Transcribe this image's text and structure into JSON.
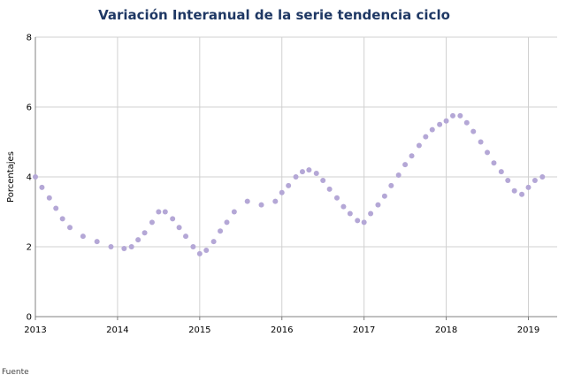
{
  "chart_data": {
    "type": "scatter",
    "title": "Variación Interanual de la serie tendencia ciclo",
    "xlabel": "",
    "ylabel": "Porcentajes",
    "xlim": [
      2013,
      2019.35
    ],
    "ylim": [
      0,
      8
    ],
    "yticks": [
      "0",
      "2",
      "4",
      "6",
      "8"
    ],
    "xticks": [
      "2013",
      "2014",
      "2015",
      "2016",
      "2017",
      "2018",
      "2019"
    ],
    "grid": true,
    "marker_color": "#b4a7d6",
    "title_color": "#1f3864",
    "footer_text": "Fuente",
    "x": [
      2013.0,
      2013.08,
      2013.17,
      2013.25,
      2013.33,
      2013.42,
      2013.58,
      2013.75,
      2013.92,
      2014.08,
      2014.17,
      2014.25,
      2014.33,
      2014.42,
      2014.5,
      2014.58,
      2014.67,
      2014.75,
      2014.83,
      2014.92,
      2015.0,
      2015.08,
      2015.17,
      2015.25,
      2015.33,
      2015.42,
      2015.58,
      2015.75,
      2015.92,
      2016.0,
      2016.08,
      2016.17,
      2016.25,
      2016.33,
      2016.42,
      2016.5,
      2016.58,
      2016.67,
      2016.75,
      2016.83,
      2016.92,
      2017.0,
      2017.08,
      2017.17,
      2017.25,
      2017.33,
      2017.42,
      2017.5,
      2017.58,
      2017.67,
      2017.75,
      2017.83,
      2017.92,
      2018.0,
      2018.08,
      2018.17,
      2018.25,
      2018.33,
      2018.42,
      2018.5,
      2018.58,
      2018.67,
      2018.75,
      2018.83,
      2018.92,
      2019.0,
      2019.08,
      2019.17
    ],
    "y": [
      4.0,
      3.7,
      3.4,
      3.1,
      2.8,
      2.55,
      2.3,
      2.15,
      2.0,
      1.95,
      2.0,
      2.2,
      2.4,
      2.7,
      3.0,
      3.0,
      2.8,
      2.55,
      2.3,
      2.0,
      1.8,
      1.9,
      2.15,
      2.45,
      2.7,
      3.0,
      3.3,
      3.2,
      3.3,
      3.55,
      3.75,
      4.0,
      4.15,
      4.2,
      4.1,
      3.9,
      3.65,
      3.4,
      3.15,
      2.95,
      2.75,
      2.7,
      2.95,
      3.2,
      3.45,
      3.75,
      4.05,
      4.35,
      4.6,
      4.9,
      5.15,
      5.35,
      5.5,
      5.6,
      5.75,
      5.75,
      5.55,
      5.3,
      5.0,
      4.7,
      4.4,
      4.15,
      3.9,
      3.6,
      3.5,
      3.7,
      3.9,
      4.0
    ]
  }
}
